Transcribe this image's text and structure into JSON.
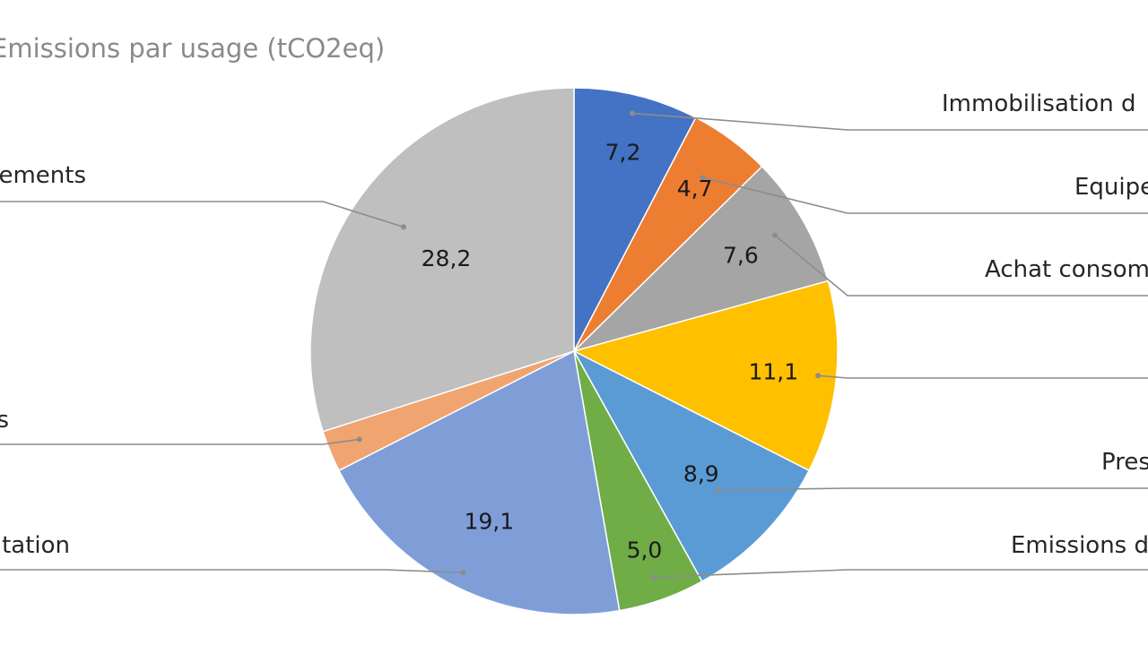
{
  "chart_data": {
    "type": "pie",
    "title": "Emissions par usage (tCO2eq)",
    "start_angle_deg": 0,
    "direction": "clockwise",
    "slices": [
      {
        "label": "Immobilisation d",
        "value": 7.2,
        "value_label": "7,2",
        "color": "#4472C4"
      },
      {
        "label": "Equipe",
        "value": 4.7,
        "value_label": "4,7",
        "color": "#ED7D31"
      },
      {
        "label": "Achat consom",
        "value": 7.6,
        "value_label": "7,6",
        "color": "#A5A5A5"
      },
      {
        "label": "",
        "value": 11.1,
        "value_label": "11,1",
        "color": "#FFC000"
      },
      {
        "label": "Pres",
        "value": 8.9,
        "value_label": "8,9",
        "color": "#5B9BD5"
      },
      {
        "label": "Emissions d",
        "value": 5.0,
        "value_label": "5,0",
        "color": "#70AD47"
      },
      {
        "label": "tation",
        "value": 19.1,
        "value_label": "19,1",
        "color": "#7F9ED8"
      },
      {
        "label": "s",
        "value": 2.4,
        "value_label": "",
        "color": "#F0A571"
      },
      {
        "label": "ements",
        "value": 28.2,
        "value_label": "28,2",
        "color": "#BFBFBF"
      }
    ]
  }
}
